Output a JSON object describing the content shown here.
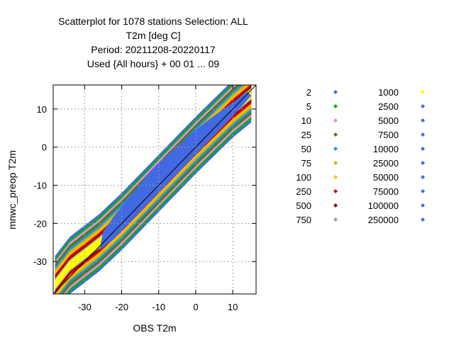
{
  "chart_data": {
    "type": "heatmap",
    "title_lines": [
      "Scatterplot for 1078 stations Selection: ALL",
      "T2m [deg C]",
      "Period: 20211208-20220117",
      "Used {All hours} + 00 01 ... 09"
    ],
    "xlabel": "OBS T2m",
    "ylabel": "mnwc_preop T2m",
    "xlim": [
      -38.5,
      16.3
    ],
    "ylim": [
      -38.5,
      16.3
    ],
    "xticks": [
      -30,
      -20,
      -10,
      0,
      10
    ],
    "yticks": [
      -30,
      -20,
      -10,
      0,
      10
    ],
    "x_tick_labels": [
      "-30",
      "-20",
      "-10",
      "0",
      "10"
    ],
    "y_tick_labels": [
      "-30",
      "-20",
      "-10",
      "0",
      "10"
    ],
    "grid": true,
    "diagonal": "1:1",
    "legend_placement": "right",
    "legend": [
      {
        "label": "2",
        "color": "#4169e1"
      },
      {
        "label": "5",
        "color": "#00b400"
      },
      {
        "label": "10",
        "color": "#ee82ee"
      },
      {
        "label": "25",
        "color": "#4a7f00"
      },
      {
        "label": "50",
        "color": "#1e90ff"
      },
      {
        "label": "75",
        "color": "#c8b400"
      },
      {
        "label": "100",
        "color": "#ffc000"
      },
      {
        "label": "250",
        "color": "#e00000"
      },
      {
        "label": "500",
        "color": "#8b0000"
      },
      {
        "label": "750",
        "color": "#a0a0a0"
      },
      {
        "label": "1000",
        "color": "#ffff00"
      },
      {
        "label": "2500",
        "color": "#4169e1"
      },
      {
        "label": "5000",
        "color": "#4169e1"
      },
      {
        "label": "7500",
        "color": "#4169e1"
      },
      {
        "label": "10000",
        "color": "#4169e1"
      },
      {
        "label": "25000",
        "color": "#4169e1"
      },
      {
        "label": "50000",
        "color": "#4169e1"
      },
      {
        "label": "75000",
        "color": "#4169e1"
      },
      {
        "label": "100000",
        "color": "#4169e1"
      },
      {
        "label": "250000",
        "color": "#4169e1"
      }
    ],
    "density_band": {
      "count_levels": [
        2,
        5,
        10,
        25,
        50,
        75,
        100,
        250,
        500,
        750,
        1000
      ],
      "center_line": [
        [
          -38,
          -36
        ],
        [
          -34,
          -31
        ],
        [
          -30,
          -28
        ],
        [
          -26,
          -25
        ],
        [
          -20,
          -19.5
        ],
        [
          -10,
          -9.5
        ],
        [
          0,
          0.5
        ],
        [
          10,
          10
        ],
        [
          15,
          14
        ]
      ],
      "half_width_levels": [
        7.5,
        6.8,
        6.1,
        5.4,
        4.6,
        3.9,
        3.3,
        2.6,
        2.0,
        1.6,
        1.2
      ],
      "core_shape": [
        [
          -26,
          -27
        ],
        [
          -25,
          -22
        ],
        [
          -22,
          -18
        ],
        [
          -12,
          -6
        ],
        [
          -2,
          3
        ],
        [
          6,
          9
        ],
        [
          14,
          14.5
        ],
        [
          15,
          13.5
        ],
        [
          8,
          6
        ],
        [
          0,
          -2
        ],
        [
          -8,
          -10
        ],
        [
          -16,
          -18
        ],
        [
          -22,
          -24
        ],
        [
          -26,
          -27
        ]
      ]
    }
  }
}
